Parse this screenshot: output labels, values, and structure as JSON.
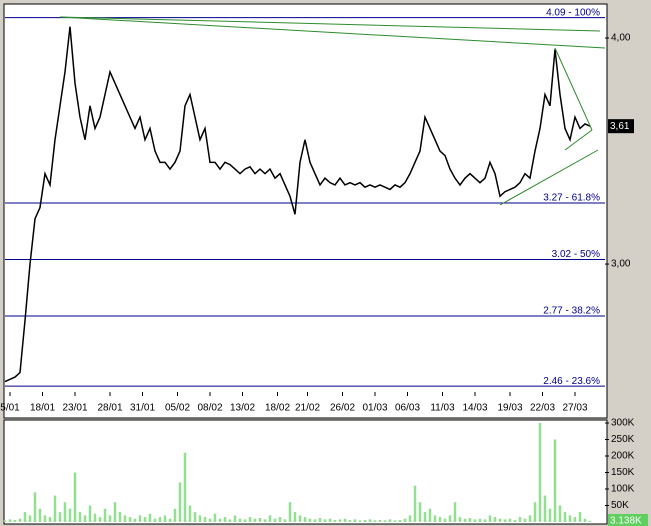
{
  "chart_data": [
    {
      "type": "line",
      "color": "#000000",
      "values": [
        2.48,
        2.49,
        2.5,
        2.52,
        2.75,
        3.0,
        3.2,
        3.25,
        3.4,
        3.35,
        3.55,
        3.7,
        3.85,
        4.05,
        3.8,
        3.65,
        3.55,
        3.7,
        3.6,
        3.65,
        3.75,
        3.85,
        3.8,
        3.75,
        3.7,
        3.65,
        3.6,
        3.65,
        3.55,
        3.6,
        3.5,
        3.45,
        3.45,
        3.42,
        3.45,
        3.5,
        3.7,
        3.75,
        3.65,
        3.55,
        3.6,
        3.45,
        3.45,
        3.42,
        3.45,
        3.44,
        3.42,
        3.4,
        3.42,
        3.43,
        3.4,
        3.42,
        3.4,
        3.42,
        3.38,
        3.4,
        3.35,
        3.3,
        3.22,
        3.45,
        3.55,
        3.45,
        3.4,
        3.35,
        3.38,
        3.36,
        3.35,
        3.38,
        3.35,
        3.36,
        3.35,
        3.36,
        3.34,
        3.35,
        3.34,
        3.35,
        3.34,
        3.33,
        3.35,
        3.34,
        3.36,
        3.4,
        3.45,
        3.5,
        3.65,
        3.6,
        3.55,
        3.5,
        3.48,
        3.42,
        3.38,
        3.35,
        3.38,
        3.4,
        3.38,
        3.36,
        3.38,
        3.45,
        3.4,
        3.3,
        3.32,
        3.33,
        3.34,
        3.36,
        3.4,
        3.38,
        3.5,
        3.6,
        3.75,
        3.7,
        3.95,
        3.75,
        3.6,
        3.55,
        3.65,
        3.6,
        3.62,
        3.61
      ],
      "xlim": [
        0,
        120
      ],
      "xticks": [
        {
          "value": 1,
          "label": "5/01"
        },
        {
          "value": 7.5,
          "label": "18/01"
        },
        {
          "value": 14,
          "label": "23/01"
        },
        {
          "value": 21,
          "label": "28/01"
        },
        {
          "value": 27.5,
          "label": "31/01"
        },
        {
          "value": 34.5,
          "label": "05/02"
        },
        {
          "value": 41,
          "label": "08/02"
        },
        {
          "value": 47.5,
          "label": "13/02"
        },
        {
          "value": 54.5,
          "label": "18/02"
        },
        {
          "value": 60.5,
          "label": "21/02"
        },
        {
          "value": 67.5,
          "label": "26/02"
        },
        {
          "value": 74,
          "label": "01/03"
        },
        {
          "value": 80.5,
          "label": "06/03"
        },
        {
          "value": 87.5,
          "label": "11/03"
        },
        {
          "value": 94,
          "label": "14/03"
        },
        {
          "value": 101,
          "label": "19/03"
        },
        {
          "value": 107.5,
          "label": "22/03"
        },
        {
          "value": 114,
          "label": "27/03"
        }
      ],
      "ylim": [
        2.434,
        4.146
      ],
      "yticks": [
        {
          "value": 4,
          "label": "4,00"
        },
        {
          "value": 3,
          "label": "3,00"
        }
      ],
      "fib_levels": [
        {
          "value": 4.09,
          "label": "4.09 - 100%"
        },
        {
          "value": 3.27,
          "label": "3.27 - 61.8%"
        },
        {
          "value": 3.02,
          "label": "3.02 - 50%"
        },
        {
          "value": 2.77,
          "label": "2.77 - 38.2%"
        },
        {
          "value": 2.46,
          "label": "2.46 - 23.6%"
        }
      ],
      "last_value": {
        "value": 3.61,
        "label": "3,61"
      }
    },
    {
      "type": "bar",
      "color": "#90e090",
      "values": [
        5000,
        8000,
        6000,
        10000,
        30000,
        20000,
        90000,
        40000,
        20000,
        15000,
        80000,
        30000,
        60000,
        40000,
        150000,
        30000,
        20000,
        50000,
        25000,
        15000,
        40000,
        20000,
        60000,
        30000,
        20000,
        15000,
        10000,
        20000,
        15000,
        25000,
        10000,
        15000,
        20000,
        10000,
        40000,
        120000,
        210000,
        50000,
        30000,
        20000,
        15000,
        10000,
        25000,
        10000,
        15000,
        8000,
        20000,
        10000,
        8000,
        15000,
        10000,
        12000,
        8000,
        20000,
        10000,
        15000,
        8000,
        60000,
        30000,
        20000,
        15000,
        10000,
        8000,
        12000,
        8000,
        10000,
        6000,
        8000,
        10000,
        6000,
        8000,
        5000,
        6000,
        8000,
        5000,
        6000,
        5000,
        8000,
        5000,
        6000,
        10000,
        20000,
        110000,
        60000,
        30000,
        40000,
        20000,
        15000,
        10000,
        20000,
        60000,
        15000,
        10000,
        12000,
        8000,
        10000,
        8000,
        20000,
        15000,
        10000,
        8000,
        10000,
        6000,
        15000,
        10000,
        20000,
        60000,
        300000,
        80000,
        40000,
        250000,
        50000,
        30000,
        20000,
        15000,
        30000,
        10000,
        3138
      ],
      "xlim": [
        0,
        120
      ],
      "ylim": [
        0,
        303000
      ],
      "yticks": [
        {
          "value": 300000,
          "label": "300K"
        },
        {
          "value": 250000,
          "label": "250K"
        },
        {
          "value": 200000,
          "label": "200K"
        },
        {
          "value": 150000,
          "label": "150K"
        },
        {
          "value": 100000,
          "label": "100K"
        },
        {
          "value": 50000,
          "label": "50K"
        }
      ],
      "last_value": {
        "value": 3138,
        "label": "3.138K"
      }
    }
  ]
}
